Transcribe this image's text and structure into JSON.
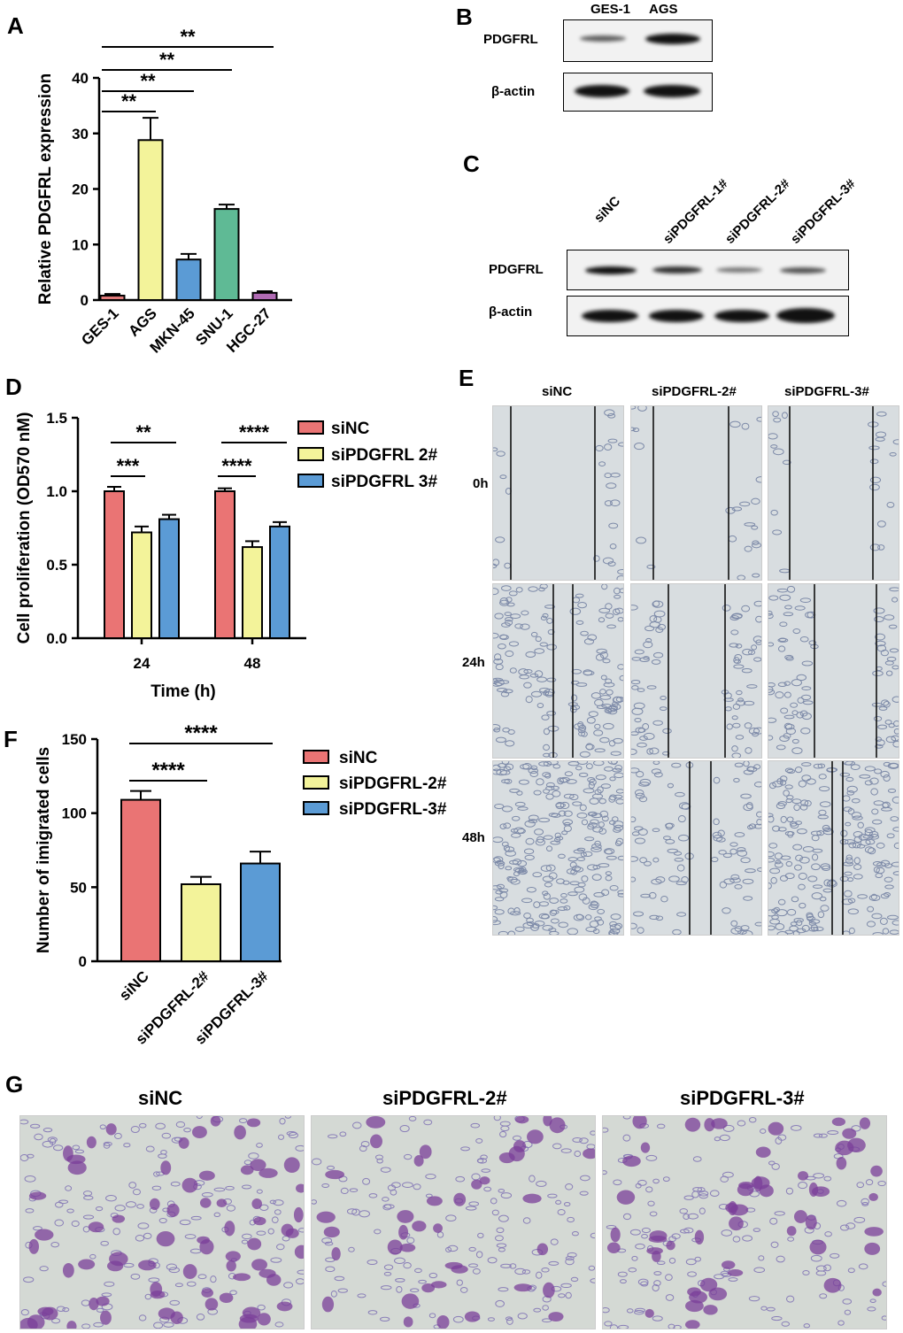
{
  "panels": {
    "A": "A",
    "B": "B",
    "C": "C",
    "D": "D",
    "E": "E",
    "F": "F",
    "G": "G"
  },
  "blot_b": {
    "lanes": [
      "GES-1",
      "AGS"
    ],
    "rows": [
      "PDGFRL",
      "β-actin"
    ]
  },
  "blot_c": {
    "lanes": [
      "siNC",
      "siPDGFRL-1#",
      "siPDGFRL-2#",
      "siPDGFRL-3#"
    ],
    "rows": [
      "PDGFRL",
      "β-actin"
    ]
  },
  "wound": {
    "columns": [
      "siNC",
      "siPDGFRL-2#",
      "siPDGFRL-3#"
    ],
    "rows": [
      "0h",
      "24h",
      "48h"
    ]
  },
  "transwell": {
    "columns": [
      "siNC",
      "siPDGFRL-2#",
      "siPDGFRL-3#"
    ]
  },
  "chart_data": [
    {
      "id": "A",
      "type": "bar",
      "ylabel": "Relative PDGFRL expression",
      "xlabel": "",
      "ylim": [
        0,
        40
      ],
      "yticks": [
        0,
        10,
        20,
        30,
        40
      ],
      "categories": [
        "GES-1",
        "AGS",
        "MKN-45",
        "SNU-1",
        "HGC-27"
      ],
      "values": [
        0.8,
        28.8,
        7.3,
        16.4,
        1.3
      ],
      "errors": [
        0.3,
        4.0,
        1.0,
        0.8,
        0.3
      ],
      "colors": [
        "#e07a7a",
        "#f3f39a",
        "#5b9bd5",
        "#5fba95",
        "#b06ab3"
      ],
      "significance": [
        {
          "from": 0,
          "to": 1,
          "label": "**"
        },
        {
          "from": 0,
          "to": 2,
          "label": "**"
        },
        {
          "from": 0,
          "to": 3,
          "label": "**"
        },
        {
          "from": 0,
          "to": 4,
          "label": "**"
        }
      ]
    },
    {
      "id": "D",
      "type": "bar",
      "ylabel": "Cell proliferation (OD570 nM)",
      "xlabel": "Time (h)",
      "ylim": [
        0,
        1.5
      ],
      "yticks": [
        "0.0",
        "0.5",
        "1.0",
        "1.5"
      ],
      "categories": [
        "24",
        "48"
      ],
      "series": [
        {
          "name": "siNC",
          "color": "#ea7474",
          "values": [
            1.0,
            1.0
          ],
          "errors": [
            0.03,
            0.02
          ]
        },
        {
          "name": "siPDGFRL 2#",
          "color": "#f3f39a",
          "values": [
            0.72,
            0.62
          ],
          "errors": [
            0.04,
            0.04
          ]
        },
        {
          "name": "siPDGFRL 3#",
          "color": "#5b9bd5",
          "values": [
            0.81,
            0.76
          ],
          "errors": [
            0.03,
            0.03
          ]
        }
      ],
      "significance": [
        {
          "group": 0,
          "from": 0,
          "to": 1,
          "label": "***"
        },
        {
          "group": 0,
          "from": 0,
          "to": 2,
          "label": "**"
        },
        {
          "group": 1,
          "from": 0,
          "to": 1,
          "label": "****"
        },
        {
          "group": 1,
          "from": 0,
          "to": 2,
          "label": "****"
        }
      ]
    },
    {
      "id": "F",
      "type": "bar",
      "ylabel": "Number of imigrated cells",
      "xlabel": "",
      "ylim": [
        0,
        150
      ],
      "yticks": [
        0,
        50,
        100,
        150
      ],
      "categories": [
        "siNC",
        "siPDGFRL-2#",
        "siPDGFRL-3#"
      ],
      "values": [
        109,
        52,
        66
      ],
      "errors": [
        6,
        5,
        8
      ],
      "colors": [
        "#ea7474",
        "#f3f39a",
        "#5b9bd5"
      ],
      "legend": [
        "siNC",
        "siPDGFRL-2#",
        "siPDGFRL-3#"
      ],
      "significance": [
        {
          "from": 0,
          "to": 1,
          "label": "****"
        },
        {
          "from": 0,
          "to": 2,
          "label": "****"
        }
      ]
    }
  ]
}
